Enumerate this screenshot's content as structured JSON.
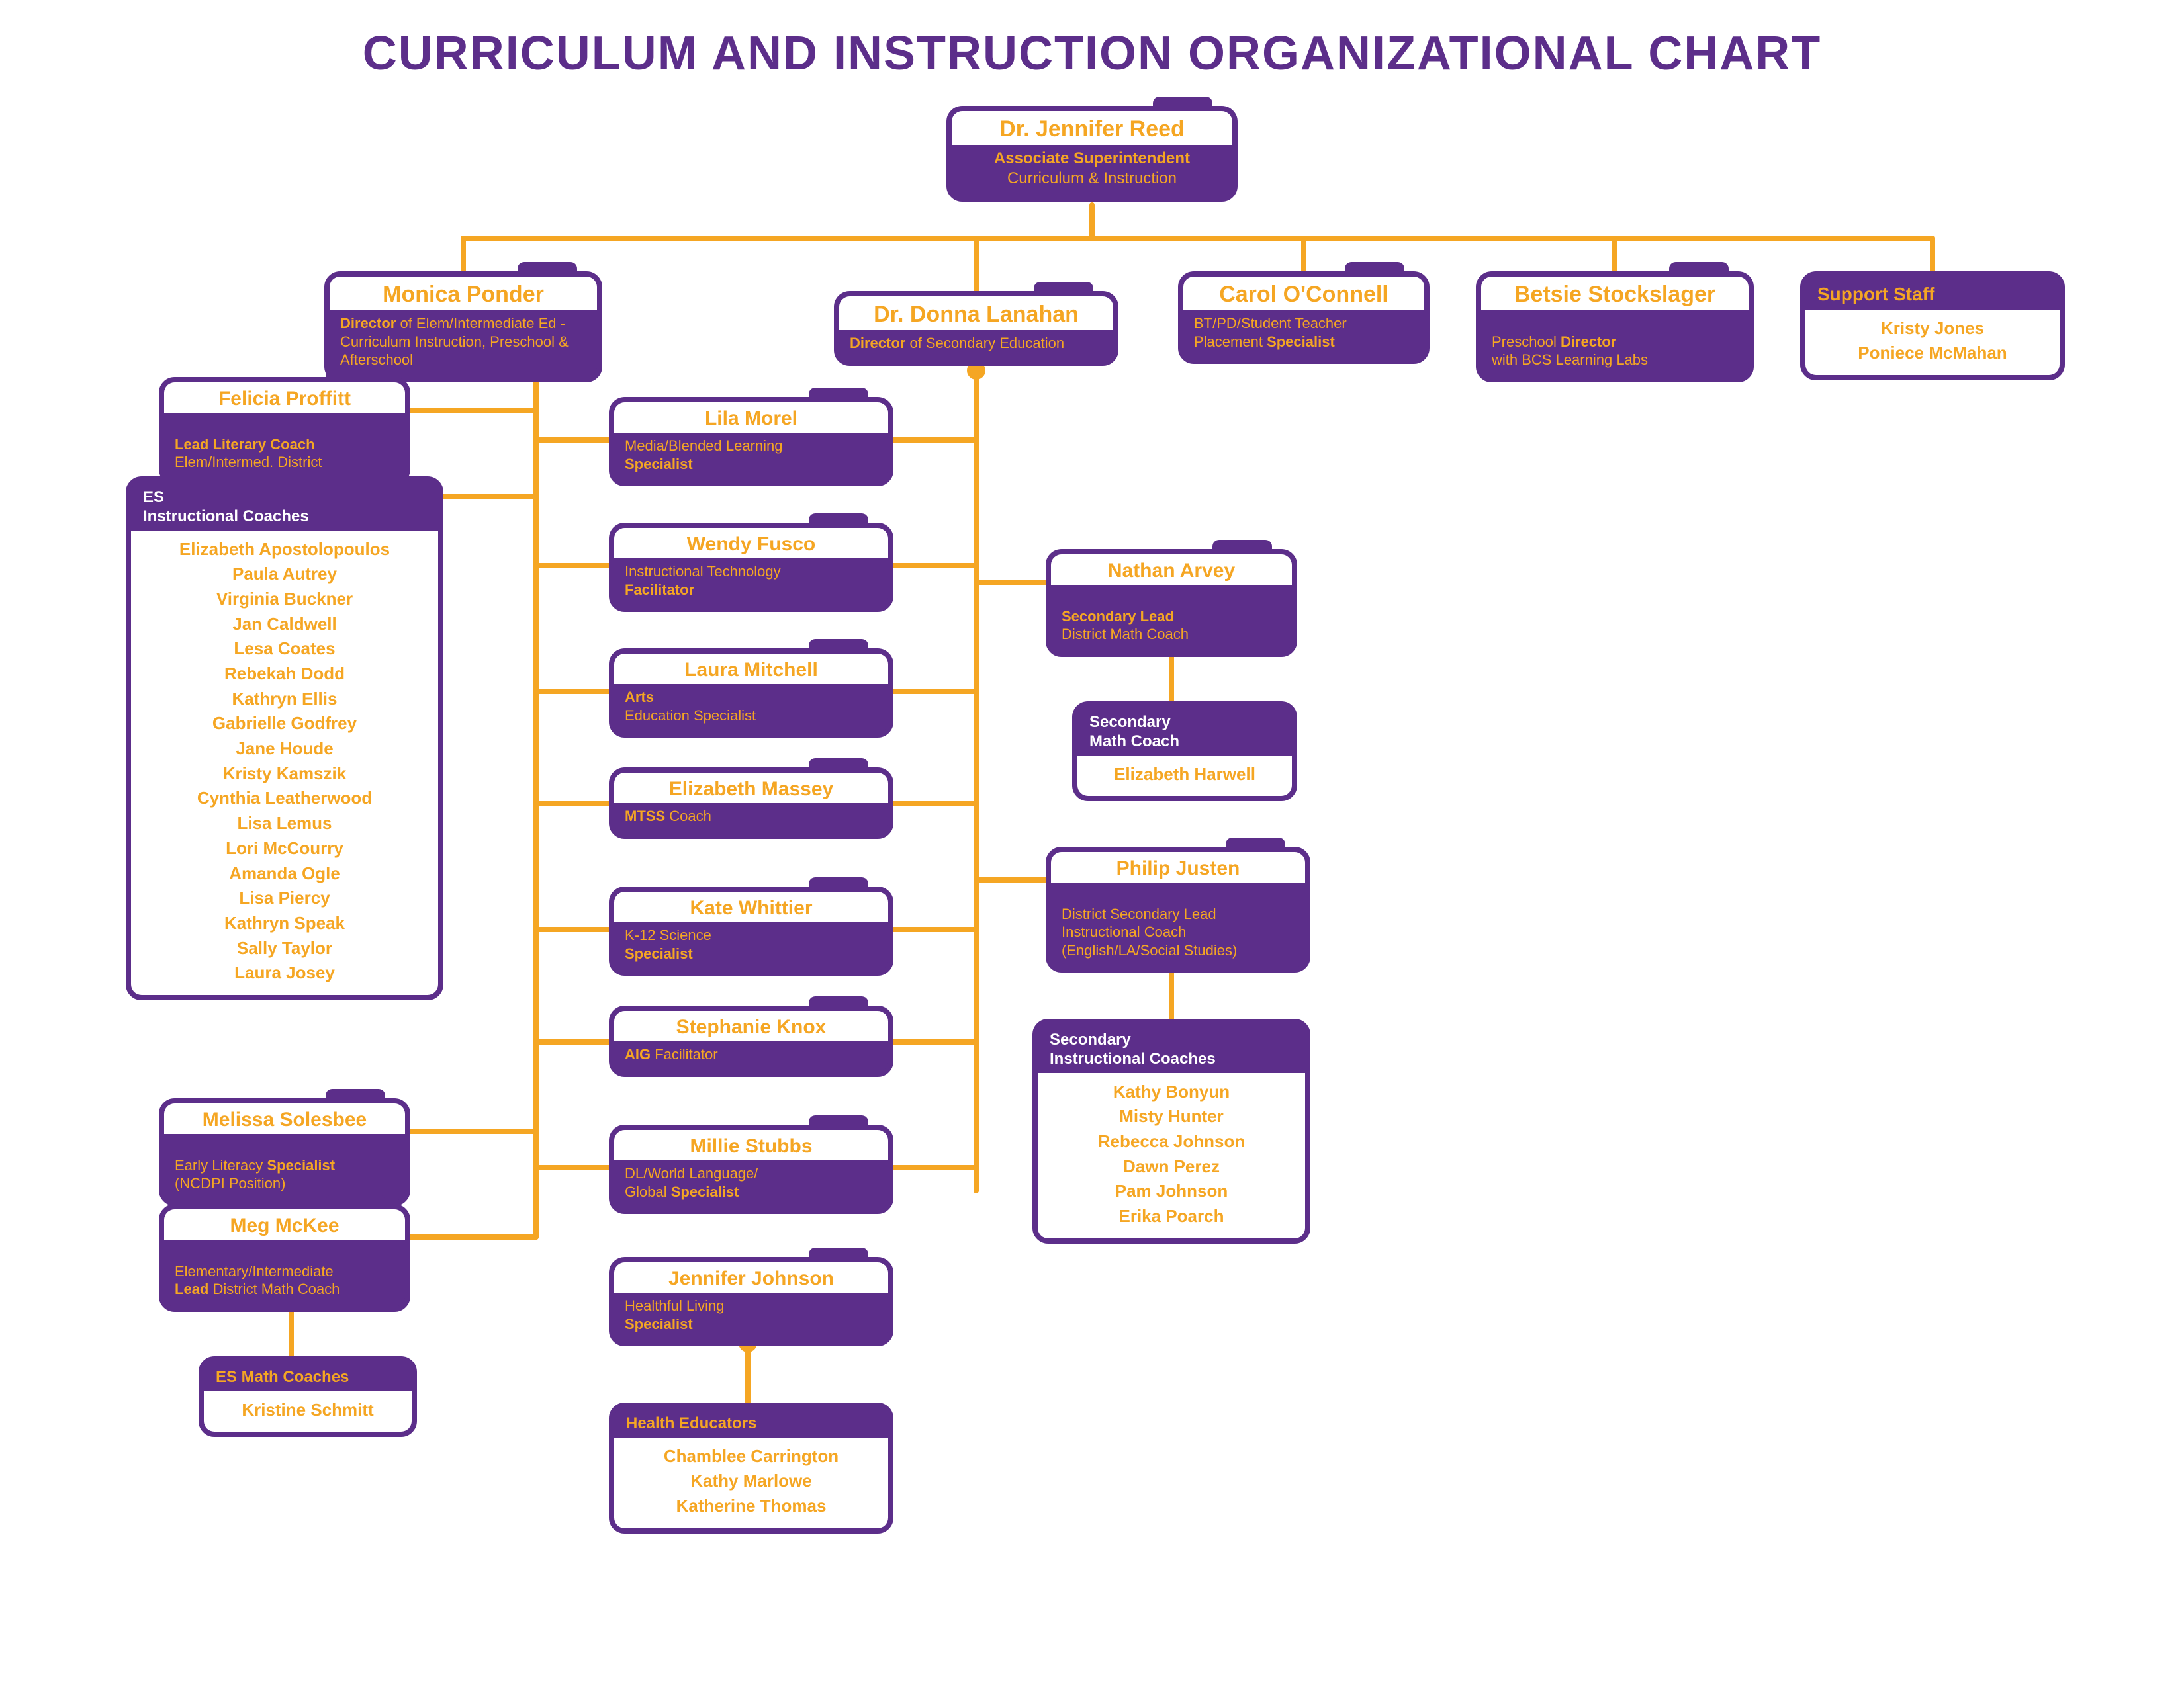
{
  "colors": {
    "purple": "#5c2e8a",
    "orange": "#f5a623",
    "connector": "#f5a623",
    "white": "#ffffff"
  },
  "title": "CURRICULUM AND INSTRUCTION ORGANIZATIONAL CHART",
  "title_color": "#5c2e8a",
  "fonts": {
    "title_size": 72,
    "name_size": 34,
    "role_size": 24,
    "list_name_size": 26,
    "list_header_size": 24
  },
  "connector_width": 8,
  "root": {
    "name": "Dr. Jennifer Reed",
    "role_bold": "Associate Superintendent",
    "role_sub": "Curriculum & Instruction"
  },
  "directors": {
    "ponder": {
      "name": "Monica Ponder",
      "role_pre": "",
      "role_bold": "Director",
      "role_post": " of Elem/Intermediate Ed - Curriculum Instruction, Preschool & Afterschool"
    },
    "lanahan": {
      "name": "Dr. Donna Lanahan",
      "role_pre": "",
      "role_bold": "Director",
      "role_post": " of Secondary Education"
    },
    "oconnell": {
      "name": "Carol O'Connell",
      "role_pre": "BT/PD/Student Teacher Placement ",
      "role_bold": "Specialist",
      "role_post": ""
    },
    "stockslager": {
      "name": "Betsie Stockslager",
      "role_pre": "Preschool ",
      "role_bold": "Director",
      "role_post": "\nwith BCS Learning Labs"
    }
  },
  "support_staff": {
    "header": "Support Staff",
    "names": [
      "Kristy Jones",
      "Poniece McMahan"
    ]
  },
  "ponder_children": {
    "proffitt": {
      "name": "Felicia Proffitt",
      "role_bold": "Lead Literary Coach",
      "role_post": "\nElem/Intermed. District"
    },
    "solesbee": {
      "name": "Melissa Solesbee",
      "role_pre": "Early Literacy ",
      "role_bold": "Specialist",
      "role_post": "\n(NCDPI Position)"
    },
    "mckee": {
      "name": "Meg McKee",
      "role_pre": "Elementary/Intermediate\n",
      "role_bold": "Lead",
      "role_post": " District Math Coach"
    }
  },
  "es_coaches": {
    "header": "ES\nInstructional Coaches",
    "names": [
      "Elizabeth Apostolopoulos",
      "Paula Autrey",
      "Virginia Buckner",
      "Jan Caldwell",
      "Lesa Coates",
      "Rebekah Dodd",
      "Kathryn Ellis",
      "Gabrielle Godfrey",
      "Jane Houde",
      "Kristy Kamszik",
      "Cynthia Leatherwood",
      "Lisa Lemus",
      "Lori McCourry",
      "Amanda Ogle",
      "Lisa Piercy",
      "Kathryn Speak",
      "Sally Taylor",
      "Laura Josey"
    ]
  },
  "es_math": {
    "header": "ES Math Coaches",
    "names": [
      "Kristine Schmitt"
    ]
  },
  "shared_specialists": [
    {
      "id": "morel",
      "name": "Lila Morel",
      "role_pre": "Media/Blended Learning\n",
      "role_bold": "Specialist",
      "role_post": ""
    },
    {
      "id": "fusco",
      "name": "Wendy Fusco",
      "role_pre": "Instructional Technology\n",
      "role_bold": "Facilitator",
      "role_post": ""
    },
    {
      "id": "mitchell",
      "name": "Laura Mitchell",
      "role_pre": "",
      "role_bold": "Arts",
      "role_post": "\nEducation Specialist"
    },
    {
      "id": "massey",
      "name": "Elizabeth Massey",
      "role_pre": "",
      "role_bold": "MTSS",
      "role_post": " Coach"
    },
    {
      "id": "whittier",
      "name": "Kate Whittier",
      "role_pre": "K-12 Science\n",
      "role_bold": "Specialist",
      "role_post": ""
    },
    {
      "id": "knox",
      "name": "Stephanie Knox",
      "role_pre": "",
      "role_bold": "AIG",
      "role_post": " Facilitator"
    },
    {
      "id": "stubbs",
      "name": "Millie Stubbs",
      "role_pre": "DL/World Language/\nGlobal ",
      "role_bold": "Specialist",
      "role_post": ""
    },
    {
      "id": "johnson",
      "name": "Jennifer Johnson",
      "role_pre": "Healthful Living\n",
      "role_bold": "Specialist",
      "role_post": ""
    }
  ],
  "health_educators": {
    "header": "Health Educators",
    "names": [
      "Chamblee Carrington",
      "Kathy Marlowe",
      "Katherine Thomas"
    ]
  },
  "lanahan_children": {
    "arvey": {
      "name": "Nathan Arvey",
      "role_bold": "Secondary Lead",
      "role_post": "\nDistrict Math Coach"
    },
    "justen": {
      "name": "Philip Justen",
      "role_pre": "District Secondary Lead\nInstructional Coach\n(English/LA/Social Studies)",
      "role_bold": "",
      "role_post": ""
    }
  },
  "sec_math": {
    "header": "Secondary\nMath Coach",
    "names": [
      "Elizabeth Harwell"
    ]
  },
  "sec_coaches": {
    "header": "Secondary\nInstructional Coaches",
    "names": [
      "Kathy Bonyun",
      "Misty Hunter",
      "Rebecca Johnson",
      "Dawn Perez",
      "Pam Johnson",
      "Erika Poarch"
    ]
  }
}
